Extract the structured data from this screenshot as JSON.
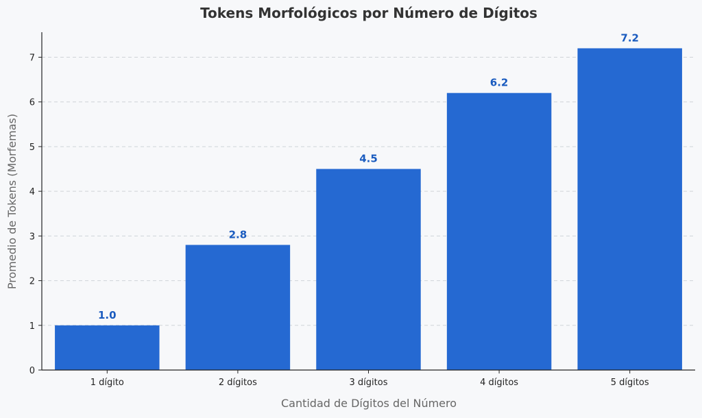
{
  "chart_data": {
    "type": "bar",
    "title": "Tokens Morfológicos por Número de Dígitos",
    "xlabel": "Cantidad de Dígitos del Número",
    "ylabel": "Promedio de Tokens (Morfemas)",
    "categories": [
      "1 dígito",
      "2 dígitos",
      "3 dígitos",
      "4 dígitos",
      "5 dígitos"
    ],
    "values": [
      1.0,
      2.8,
      4.5,
      6.2,
      7.2
    ],
    "data_labels": [
      "1.0",
      "2.8",
      "4.5",
      "6.2",
      "7.2"
    ],
    "ylim": [
      0,
      7.56
    ],
    "yticks": [
      0,
      1,
      2,
      3,
      4,
      5,
      6,
      7
    ],
    "grid": true,
    "bar_color": "#2569d2",
    "label_color": "#1a5bbf"
  }
}
